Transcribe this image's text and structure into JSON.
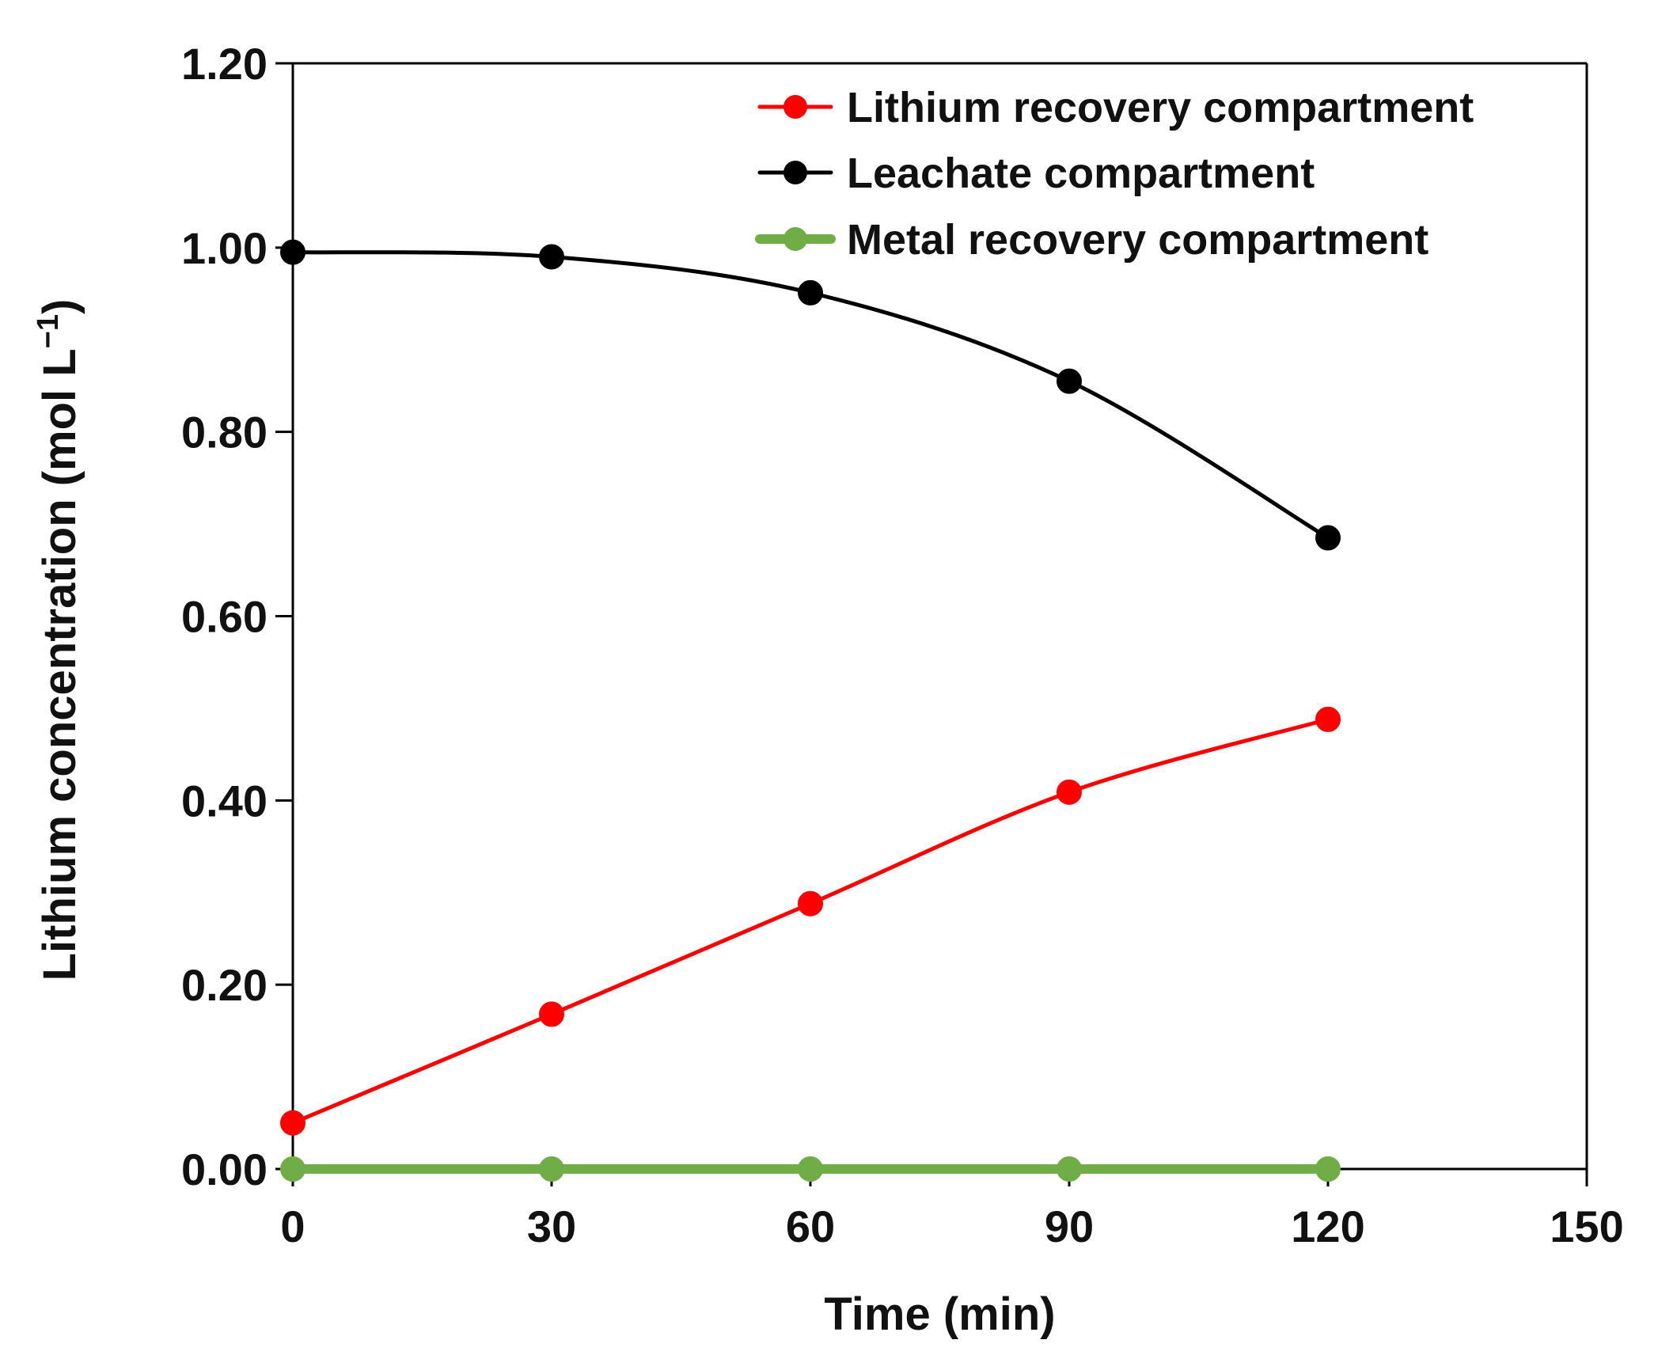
{
  "chart_data": {
    "type": "line",
    "title": "",
    "xlabel": "Time (min)",
    "ylabel": "Lithium concentration (mol L",
    "ylabel_sup": "−1",
    "ylabel_close": ")",
    "xlim": [
      0,
      150
    ],
    "ylim": [
      0,
      1.2
    ],
    "x_ticks": [
      0,
      30,
      60,
      90,
      120,
      150
    ],
    "x_tick_labels": [
      "0",
      "30",
      "60",
      "90",
      "120",
      "150"
    ],
    "y_ticks": [
      0,
      0.2,
      0.4,
      0.6,
      0.8,
      1.0,
      1.2
    ],
    "y_tick_labels": [
      "0.00",
      "0.20",
      "0.40",
      "0.60",
      "0.80",
      "1.00",
      "1.20"
    ],
    "grid": false,
    "legend_position": "top-right",
    "x": [
      0,
      30,
      60,
      90,
      120
    ],
    "series": [
      {
        "name": "Lithium recovery compartment",
        "color": "#ff0000",
        "values": [
          0.05,
          0.168,
          0.288,
          0.409,
          0.488
        ]
      },
      {
        "name": "Leachate compartment",
        "color": "#000000",
        "values": [
          0.995,
          0.99,
          0.951,
          0.855,
          0.685
        ]
      },
      {
        "name": "Metal recovery compartment",
        "color": "#70ad47",
        "values": [
          0.0,
          0.0,
          0.0,
          0.0,
          0.0
        ]
      }
    ]
  }
}
